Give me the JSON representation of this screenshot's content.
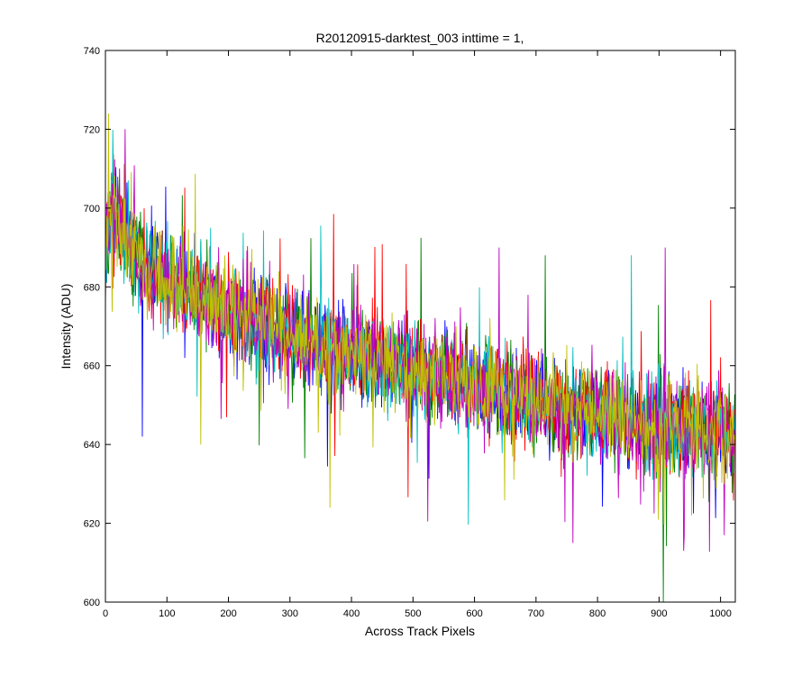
{
  "chart_data": {
    "type": "line",
    "title": "R20120915-darktest_003 inttime = 1,",
    "xlabel": "Across Track Pixels",
    "ylabel": "Intensity (ADU)",
    "xlim": [
      0,
      1024
    ],
    "ylim": [
      600,
      740
    ],
    "xticks": [
      0,
      100,
      200,
      300,
      400,
      500,
      600,
      700,
      800,
      900,
      1000
    ],
    "yticks": [
      600,
      620,
      640,
      660,
      680,
      700,
      720,
      740
    ],
    "grid": false,
    "legend": "none",
    "series_colors": [
      "#0000ff",
      "#008000",
      "#ff0000",
      "#00bfbf",
      "#bf00bf",
      "#bfbf00"
    ],
    "trend": {
      "x": [
        0,
        10,
        50,
        100,
        200,
        300,
        400,
        500,
        600,
        700,
        800,
        900,
        1000,
        1023
      ],
      "mean_y": [
        688,
        700,
        688,
        682,
        674,
        668,
        663,
        659,
        655,
        651,
        648,
        645,
        643,
        642
      ]
    },
    "noise_amplitude": 12,
    "outliers": [
      {
        "x": 5,
        "y": 724
      },
      {
        "x": 60,
        "y": 642
      },
      {
        "x": 155,
        "y": 640
      },
      {
        "x": 365,
        "y": 624
      },
      {
        "x": 640,
        "y": 690
      },
      {
        "x": 715,
        "y": 688
      },
      {
        "x": 760,
        "y": 615
      },
      {
        "x": 855,
        "y": 688
      },
      {
        "x": 907,
        "y": 600
      },
      {
        "x": 910,
        "y": 690
      },
      {
        "x": 940,
        "y": 613
      },
      {
        "x": 1006,
        "y": 617
      }
    ]
  }
}
